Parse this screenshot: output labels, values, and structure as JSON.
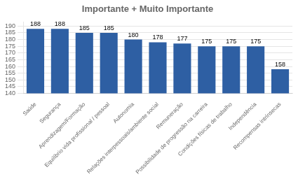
{
  "chart_data": {
    "type": "bar",
    "title": "Importante + Muito Importante",
    "categories": [
      "Saúde",
      "Segurança",
      "Aprendizagem/Formação",
      "Equilíbrio vida profissional / pessoal",
      "Autonomia",
      "Relações interpessoais/ambiente social",
      "Remuneração",
      "Possibilidade de progressão na carreira",
      "Condições físicas de trabalho",
      "Independência",
      "Recompensas intrínsecas"
    ],
    "values": [
      188,
      188,
      185,
      185,
      180,
      178,
      177,
      175,
      175,
      175,
      158
    ],
    "color": "#2E5FA3",
    "ylim": [
      140,
      193
    ],
    "yticks": [
      140,
      145,
      150,
      155,
      160,
      165,
      170,
      175,
      180,
      185,
      190
    ],
    "grid": true,
    "data_labels": true
  }
}
